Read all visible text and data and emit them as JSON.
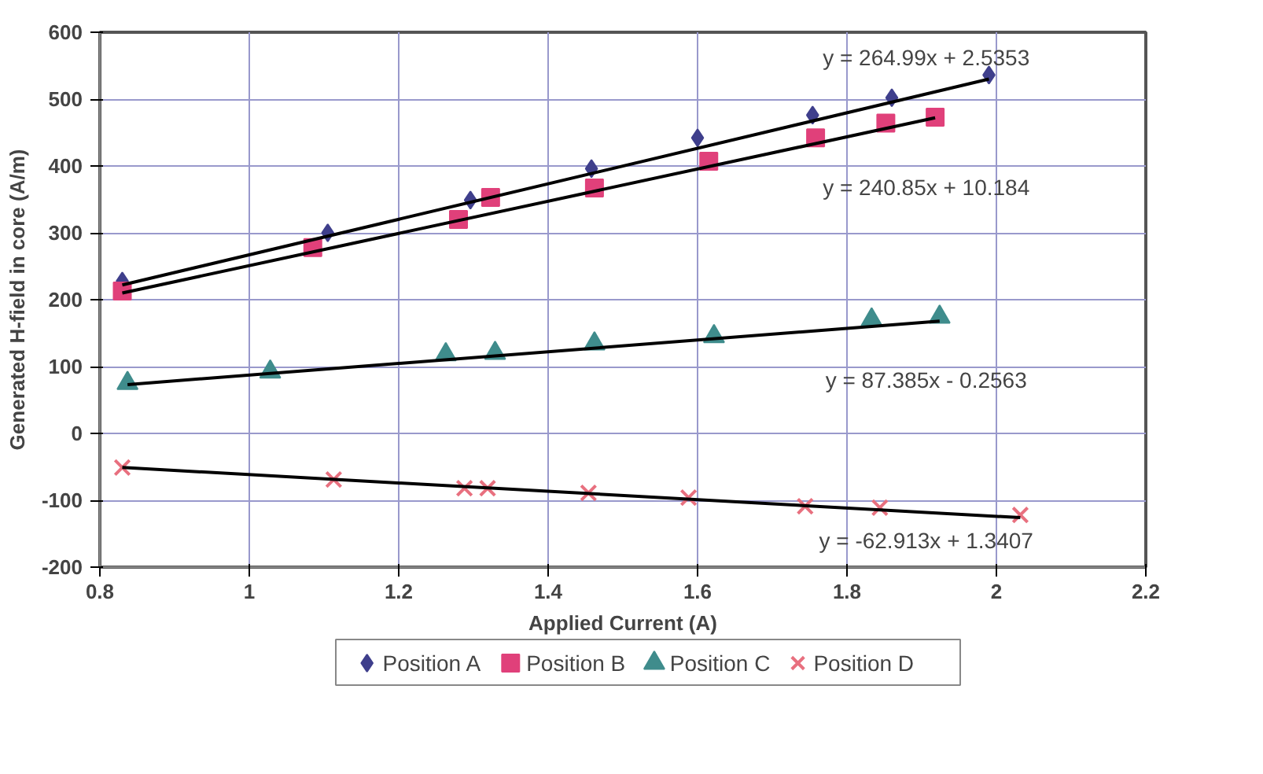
{
  "chart_data": {
    "type": "scatter",
    "xlabel": "Applied Current (A)",
    "ylabel": "Generated H-field in core (A/m)",
    "xlim": [
      0.8,
      2.2
    ],
    "ylim": [
      -200,
      600
    ],
    "xticks": [
      0.8,
      1,
      1.2,
      1.4,
      1.6,
      1.8,
      2,
      2.2
    ],
    "yticks": [
      -200,
      -100,
      0,
      100,
      200,
      300,
      400,
      500,
      600
    ],
    "grid": true,
    "legend": "bottom",
    "series": [
      {
        "name": "Position A",
        "color": "#3f3f8c",
        "marker": "diamond",
        "x": [
          0.83,
          1.105,
          1.296,
          1.458,
          1.6,
          1.754,
          1.86,
          1.99
        ],
        "values": [
          228,
          300,
          349,
          396,
          442,
          476,
          502,
          536
        ]
      },
      {
        "name": "Position B",
        "color": "#e0407a",
        "marker": "square",
        "x": [
          0.83,
          1.085,
          1.28,
          1.323,
          1.462,
          1.615,
          1.758,
          1.852,
          1.918
        ],
        "values": [
          213,
          278,
          320,
          353,
          367,
          407,
          442,
          464,
          473
        ]
      },
      {
        "name": "Position C",
        "color": "#3f8c8c",
        "marker": "triangle",
        "x": [
          0.837,
          1.028,
          1.263,
          1.329,
          1.462,
          1.622,
          1.833,
          1.924
        ],
        "values": [
          75,
          92,
          118,
          120,
          134,
          145,
          170,
          174
        ]
      },
      {
        "name": "Position D",
        "color": "#e8707f",
        "marker": "cross",
        "x": [
          0.83,
          1.113,
          1.288,
          1.319,
          1.454,
          1.588,
          1.744,
          1.844,
          2.032
        ],
        "values": [
          -51,
          -69,
          -82,
          -82,
          -89,
          -96,
          -109,
          -111,
          -122
        ]
      },
      {
        "type": "line",
        "color": "#000000",
        "marker": "none",
        "x": [
          0.83,
          1.99
        ],
        "values": [
          222,
          530
        ]
      },
      {
        "type": "line",
        "color": "#000000",
        "marker": "none",
        "x": [
          0.83,
          1.918
        ],
        "values": [
          210,
          472
        ]
      },
      {
        "type": "line",
        "color": "#000000",
        "marker": "none",
        "x": [
          0.837,
          1.924
        ],
        "values": [
          73,
          168
        ]
      },
      {
        "type": "line",
        "color": "#000000",
        "marker": "none",
        "x": [
          0.83,
          2.032
        ],
        "values": [
          -51,
          -126
        ]
      }
    ],
    "annotations": [
      "y = 264.99x + 2.5353",
      "y = 240.85x + 10.184",
      "y = 87.385x - 0.2563",
      "y = -62.913x + 1.3407"
    ]
  }
}
